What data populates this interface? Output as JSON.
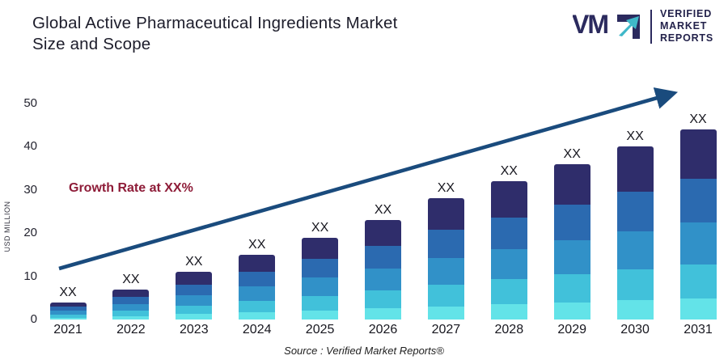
{
  "header": {
    "title_line1": "Global Active Pharmaceutical Ingredients Market",
    "title_line2": "Size and Scope",
    "logo": {
      "mark": "VMR",
      "lines": [
        "VERIFIED",
        "MARKET",
        "REPORTS"
      ],
      "navy": "#2b2a5e",
      "teal": "#3fb8c9"
    }
  },
  "annotations": {
    "growth_note": "Growth Rate at XX%",
    "growth_note_color": "#8e1c38"
  },
  "source": {
    "text": "Source :  Verified Market Reports®"
  },
  "chart_data": {
    "type": "bar",
    "stacked": true,
    "title": "Global Active Pharmaceutical Ingredients Market Size and Scope",
    "categories": [
      "2021",
      "2022",
      "2023",
      "2024",
      "2025",
      "2026",
      "2027",
      "2028",
      "2029",
      "2030",
      "2031"
    ],
    "values": [
      4,
      7,
      11,
      15,
      19,
      23,
      28,
      32,
      36,
      40,
      44
    ],
    "bar_label": "XX",
    "xlabel": "",
    "ylabel": "USD MILLION",
    "ylim": [
      0,
      50
    ],
    "yticks": [
      0,
      10,
      20,
      30,
      40,
      50
    ],
    "grid": false,
    "legend": "none",
    "segment_colors_top_to_bottom": [
      "#2f2d6b",
      "#2b6ab0",
      "#3191c8",
      "#41c1da",
      "#63e3e8"
    ],
    "segment_fractions_top_to_bottom": [
      0.26,
      0.23,
      0.22,
      0.18,
      0.11
    ],
    "trend_arrow": {
      "color": "#1a4b7d",
      "direction": "up-right"
    }
  }
}
